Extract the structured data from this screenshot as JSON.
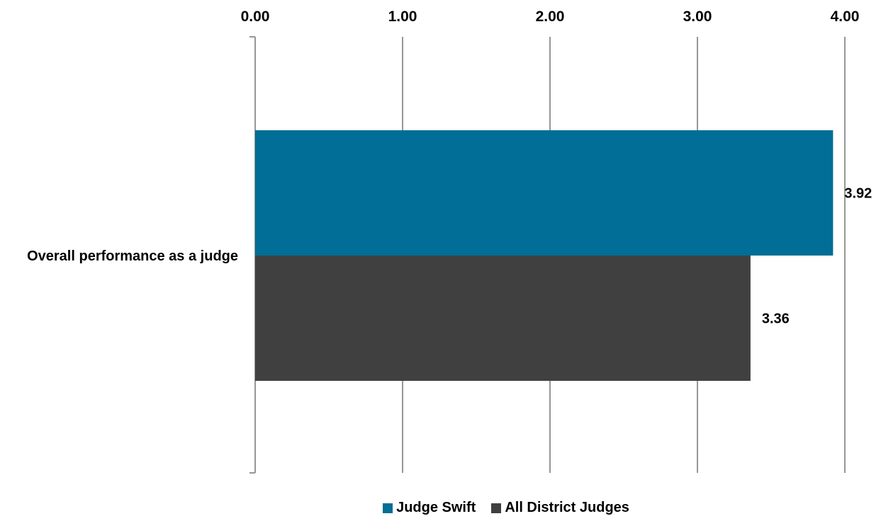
{
  "chart_data": {
    "type": "bar",
    "orientation": "horizontal",
    "categories": [
      "Overall performance as a judge"
    ],
    "series": [
      {
        "name": "Judge Swift",
        "values": [
          3.92
        ],
        "color": "#006e96"
      },
      {
        "name": "All District Judges",
        "values": [
          3.36
        ],
        "color": "#404040"
      }
    ],
    "data_labels": [
      "3.92",
      "3.36"
    ],
    "xlim": [
      0,
      4
    ],
    "x_ticks": [
      "0.00",
      "1.00",
      "2.00",
      "3.00",
      "4.00"
    ],
    "x_axis_position": "top",
    "grid": true,
    "gridline_color": "#969696",
    "legend_position": "bottom"
  }
}
